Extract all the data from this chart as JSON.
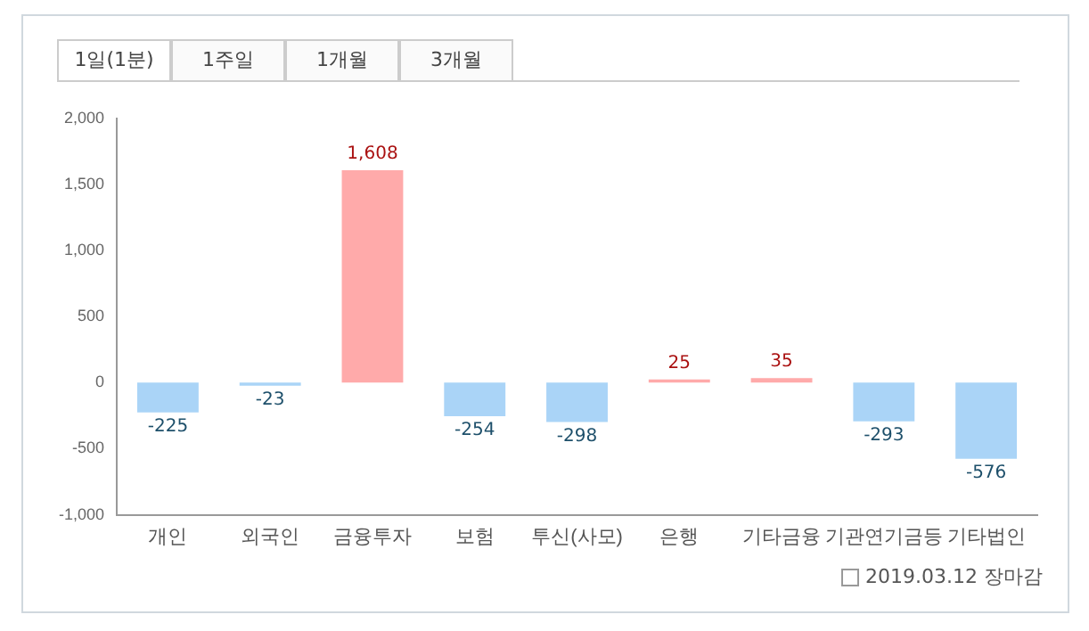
{
  "chart_data": {
    "type": "bar",
    "categories": [
      "개인",
      "외국인",
      "금융투자",
      "보험",
      "투신(사모)",
      "은행",
      "기타금융",
      "기관연기금등",
      "기타법인"
    ],
    "values": [
      -225,
      -23,
      1608,
      -254,
      -298,
      25,
      35,
      -293,
      -576
    ],
    "colors": [
      "#aad4f7",
      "#aad4f7",
      "#ffaaaa",
      "#aad4f7",
      "#aad4f7",
      "#ffaaaa",
      "#ffaaaa",
      "#aad4f7",
      "#aad4f7"
    ],
    "value_labels": [
      "-225",
      "-23",
      "1,608",
      "-254",
      "-298",
      "25",
      "35",
      "-293",
      "-576"
    ],
    "ylim": [
      -1000,
      2000
    ],
    "yticks": [
      {
        "value": -1000,
        "label": "-1,000"
      },
      -500,
      0,
      500,
      {
        "value": 1000,
        "label": "1,000"
      },
      {
        "value": 1500,
        "label": "1,500"
      },
      {
        "value": 2000,
        "label": "2,000"
      }
    ],
    "grid": false,
    "legend": false,
    "annotations": [
      "1일(1분)",
      "1주일",
      "1개월",
      "3개월",
      "2019.03.12 장마감"
    ]
  }
}
